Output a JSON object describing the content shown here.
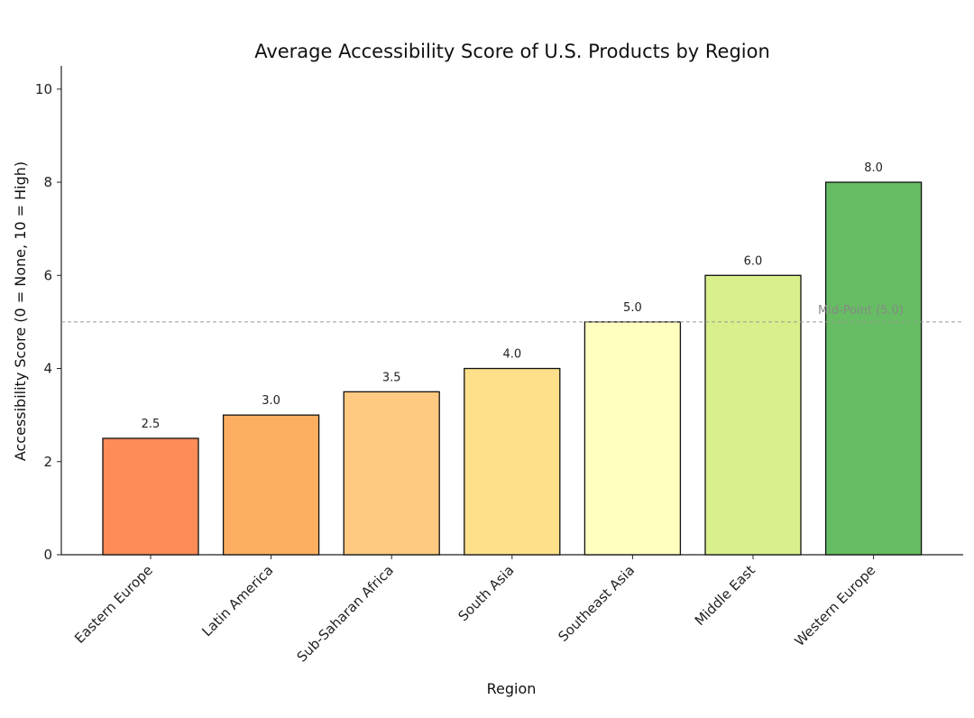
{
  "chart_data": {
    "type": "bar",
    "title": "Average Accessibility Score of U.S. Products by Region",
    "xlabel": "Region",
    "ylabel": "Accessibility Score (0 = None, 10 = High)",
    "categories": [
      "Eastern Europe",
      "Latin America",
      "Sub-Saharan Africa",
      "South Asia",
      "Southeast Asia",
      "Middle East",
      "Western Europe"
    ],
    "values": [
      2.5,
      3.0,
      3.5,
      4.0,
      5.0,
      6.0,
      8.0
    ],
    "data_labels": [
      "2.5",
      "3.0",
      "3.5",
      "4.0",
      "5.0",
      "6.0",
      "8.0"
    ],
    "colors": [
      "#fc8d59",
      "#fdae61",
      "#fec980",
      "#fee08b",
      "#ffffbf",
      "#d9ef8b",
      "#66bd63"
    ],
    "ylim": [
      0,
      10.5
    ],
    "yticks": [
      0,
      2,
      4,
      6,
      8,
      10
    ],
    "reference_line": {
      "value": 5.0,
      "label": "Mid-Point (5.0)",
      "color": "#999999"
    },
    "grid": false
  }
}
